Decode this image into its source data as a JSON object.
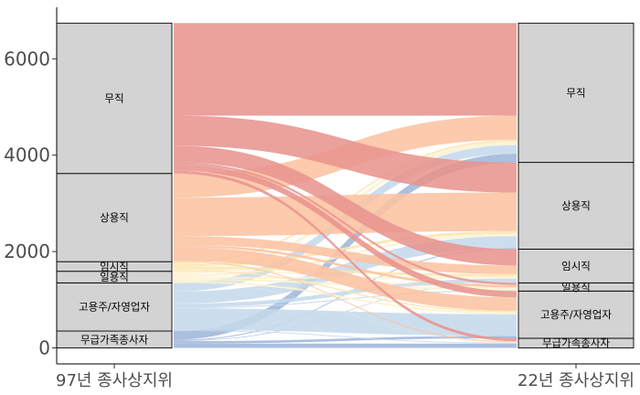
{
  "chart_data": {
    "type": "alluvial",
    "title": "",
    "xlabel": "",
    "ylabel": "",
    "axes": [
      "97년 종사상지위",
      "22년 종사상지위"
    ],
    "y_ticks": [
      0,
      2000,
      4000,
      6000
    ],
    "ylim": [
      -350,
      7050
    ],
    "grid": false,
    "strata_order": [
      "무급가족종사자",
      "고용주/자영업자",
      "일용직",
      "임시직",
      "상용직",
      "무직"
    ],
    "strata_97": [
      {
        "name": "무급가족종사자",
        "value": 350
      },
      {
        "name": "고용주/자영업자",
        "value": 1000
      },
      {
        "name": "일용직",
        "value": 240
      },
      {
        "name": "임시직",
        "value": 200
      },
      {
        "name": "상용직",
        "value": 1830
      },
      {
        "name": "무직",
        "value": 3120
      }
    ],
    "strata_22": [
      {
        "name": "무급가족종사자",
        "value": 200
      },
      {
        "name": "고용주/자영업자",
        "value": 980
      },
      {
        "name": "일용직",
        "value": 170
      },
      {
        "name": "임시직",
        "value": 700
      },
      {
        "name": "상용직",
        "value": 1800
      },
      {
        "name": "무직",
        "value": 2890
      }
    ],
    "colors": {
      "무직": "#e8948e",
      "상용직": "#fcc3a2",
      "임시직": "#fde6b3",
      "일용직": "#fdf3d0",
      "고용주/자영업자": "#c5d9ec",
      "무급가족종사자": "#9fb6d9"
    },
    "flows": [
      {
        "from": "무급가족종사자",
        "to": "무급가족종사자",
        "value": 90
      },
      {
        "from": "무급가족종사자",
        "to": "고용주/자영업자",
        "value": 50
      },
      {
        "from": "무급가족종사자",
        "to": "임시직",
        "value": 10
      },
      {
        "from": "무급가족종사자",
        "to": "상용직",
        "value": 20
      },
      {
        "from": "무급가족종사자",
        "to": "무직",
        "value": 180
      },
      {
        "from": "고용주/자영업자",
        "to": "무급가족종사자",
        "value": 20
      },
      {
        "from": "고용주/자영업자",
        "to": "고용주/자영업자",
        "value": 450
      },
      {
        "from": "고용주/자영업자",
        "to": "일용직",
        "value": 20
      },
      {
        "from": "고용주/자영업자",
        "to": "임시직",
        "value": 80
      },
      {
        "from": "고용주/자영업자",
        "to": "상용직",
        "value": 250
      },
      {
        "from": "고용주/자영업자",
        "to": "무직",
        "value": 180
      },
      {
        "from": "일용직",
        "to": "무급가족종사자",
        "value": 5
      },
      {
        "from": "일용직",
        "to": "고용주/자영업자",
        "value": 40
      },
      {
        "from": "일용직",
        "to": "일용직",
        "value": 40
      },
      {
        "from": "일용직",
        "to": "임시직",
        "value": 40
      },
      {
        "from": "일용직",
        "to": "상용직",
        "value": 45
      },
      {
        "from": "일용직",
        "to": "무직",
        "value": 70
      },
      {
        "from": "임시직",
        "to": "무급가족종사자",
        "value": 5
      },
      {
        "from": "임시직",
        "to": "고용주/자영업자",
        "value": 30
      },
      {
        "from": "임시직",
        "to": "일용직",
        "value": 15
      },
      {
        "from": "임시직",
        "to": "임시직",
        "value": 50
      },
      {
        "from": "임시직",
        "to": "상용직",
        "value": 60
      },
      {
        "from": "임시직",
        "to": "무직",
        "value": 40
      },
      {
        "from": "상용직",
        "to": "무급가족종사자",
        "value": 20
      },
      {
        "from": "상용직",
        "to": "고용주/자영업자",
        "value": 280
      },
      {
        "from": "상용직",
        "to": "일용직",
        "value": 50
      },
      {
        "from": "상용직",
        "to": "임시직",
        "value": 180
      },
      {
        "from": "상용직",
        "to": "상용직",
        "value": 800
      },
      {
        "from": "상용직",
        "to": "무직",
        "value": 500
      },
      {
        "from": "무직",
        "to": "무급가족종사자",
        "value": 60
      },
      {
        "from": "무직",
        "to": "고용주/자영업자",
        "value": 130
      },
      {
        "from": "무직",
        "to": "일용직",
        "value": 45
      },
      {
        "from": "무직",
        "to": "임시직",
        "value": 340
      },
      {
        "from": "무직",
        "to": "상용직",
        "value": 625
      },
      {
        "from": "무직",
        "to": "무직",
        "value": 1920
      }
    ]
  }
}
